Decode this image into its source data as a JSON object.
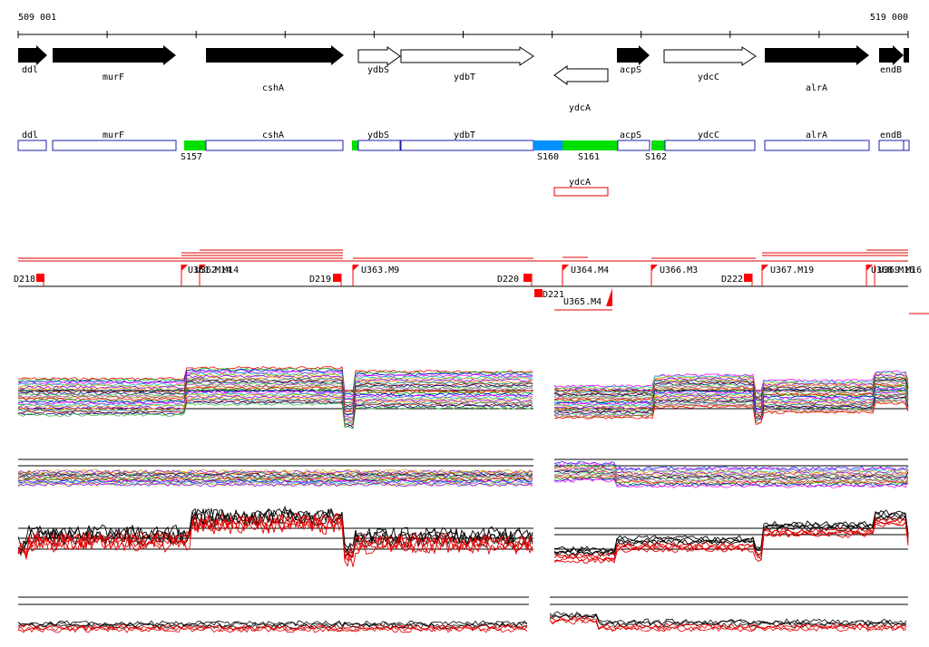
{
  "coords": {
    "start": "509 001",
    "end": "519 000"
  },
  "colors": {
    "feature_fill": "#000000",
    "annotation_blue": "#1c1cb0",
    "segment_green": "#00e000",
    "segment_blue": "#0090ff",
    "marker_red": "#ff0000"
  },
  "genes": [
    {
      "name": "ddl",
      "filled": true
    },
    {
      "name": "murF",
      "filled": true
    },
    {
      "name": "cshA",
      "filled": true
    },
    {
      "name": "ydbS",
      "filled": false
    },
    {
      "name": "ydbT",
      "filled": false
    },
    {
      "name": "ydcA",
      "filled": false
    },
    {
      "name": "acpS",
      "filled": true
    },
    {
      "name": "ydcC",
      "filled": false
    },
    {
      "name": "alrA",
      "filled": true
    },
    {
      "name": "endB",
      "filled": true
    }
  ],
  "annotation_genes": [
    "ddl",
    "murF",
    "cshA",
    "ydbS",
    "ydbT",
    "acpS",
    "ydcC",
    "alrA",
    "endB",
    "ydcA"
  ],
  "segments": [
    "S157",
    "S160",
    "S161",
    "S162"
  ],
  "markers": {
    "down": [
      "D218",
      "D219",
      "D220",
      "D221",
      "D222"
    ],
    "up": [
      "U363.M9",
      "U364.M4",
      "U365.M4",
      "U366.M3",
      "U367.M19"
    ],
    "overlapped": [
      "U361.M14",
      "U362.M14",
      "U368.M16",
      "U369.M16"
    ]
  }
}
